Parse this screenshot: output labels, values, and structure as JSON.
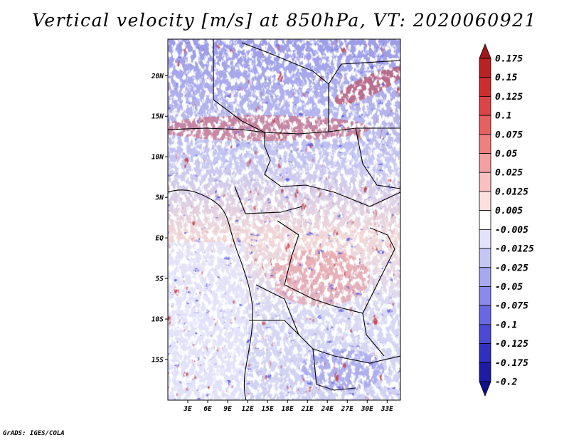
{
  "title": "Vertical velocity [m/s] at 850hPa, VT: 2020060921",
  "credit": "GrADS: IGES/COLA",
  "chart_data": {
    "type": "heatmap",
    "title": "Vertical velocity [m/s] at 850hPa, VT: 2020060921",
    "variable": "Vertical velocity",
    "units": "m/s",
    "level": "850hPa",
    "valid_time": "2020060921",
    "x_range": [
      0,
      35
    ],
    "y_range": [
      -20,
      24.5
    ],
    "x_ticks": [
      {
        "value": 3,
        "label": "3E"
      },
      {
        "value": 6,
        "label": "6E"
      },
      {
        "value": 9,
        "label": "9E"
      },
      {
        "value": 12,
        "label": "12E"
      },
      {
        "value": 15,
        "label": "15E"
      },
      {
        "value": 18,
        "label": "18E"
      },
      {
        "value": 21,
        "label": "21E"
      },
      {
        "value": 24,
        "label": "24E"
      },
      {
        "value": 27,
        "label": "27E"
      },
      {
        "value": 30,
        "label": "30E"
      },
      {
        "value": 33,
        "label": "33E"
      }
    ],
    "y_ticks": [
      {
        "value": 20,
        "label": "20N"
      },
      {
        "value": 15,
        "label": "15N"
      },
      {
        "value": 10,
        "label": "10N"
      },
      {
        "value": 5,
        "label": "5N"
      },
      {
        "value": 0,
        "label": "EQ"
      },
      {
        "value": -5,
        "label": "5S"
      },
      {
        "value": -10,
        "label": "10S"
      },
      {
        "value": -15,
        "label": "15S"
      }
    ],
    "colorbar": {
      "labels": [
        "0.175",
        "0.15",
        "0.125",
        "0.1",
        "0.075",
        "0.05",
        "0.025",
        "0.0125",
        "0.005",
        "-0.005",
        "-0.0125",
        "-0.025",
        "-0.05",
        "-0.075",
        "-0.1",
        "-0.125",
        "-0.175",
        "-0.2"
      ],
      "colors": [
        "#a01a1a",
        "#b82222",
        "#cc2e2e",
        "#dc4545",
        "#e66060",
        "#ee8080",
        "#f4a0a0",
        "#f8c0c0",
        "#fce0e0",
        "#ffffff",
        "#e2e2fa",
        "#c6c6f5",
        "#a8a8f0",
        "#8a8aea",
        "#6868e0",
        "#4a4ad4",
        "#3030c0",
        "#1c1ca4",
        "#10108a"
      ]
    }
  }
}
